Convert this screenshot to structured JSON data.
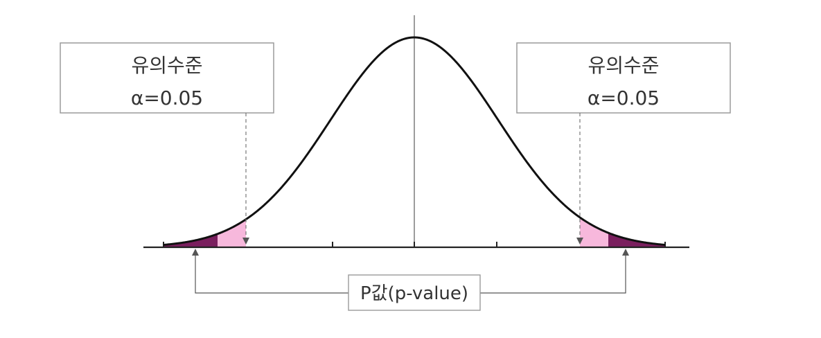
{
  "left_box": {
    "title": "유의수준",
    "value": "α=0.05"
  },
  "right_box": {
    "title": "유의수준",
    "value": "α=0.05"
  },
  "pvalue_label": "P값(p-value)",
  "colors": {
    "curve": "#111111",
    "axis": "#222222",
    "alpha_region": "#f7b8dc",
    "pvalue_region": "#7a1f5e",
    "box_border": "#9a9a9a",
    "guide_line": "#777777"
  },
  "icons": [
    "arrow-up-icon",
    "arrow-down-icon"
  ]
}
